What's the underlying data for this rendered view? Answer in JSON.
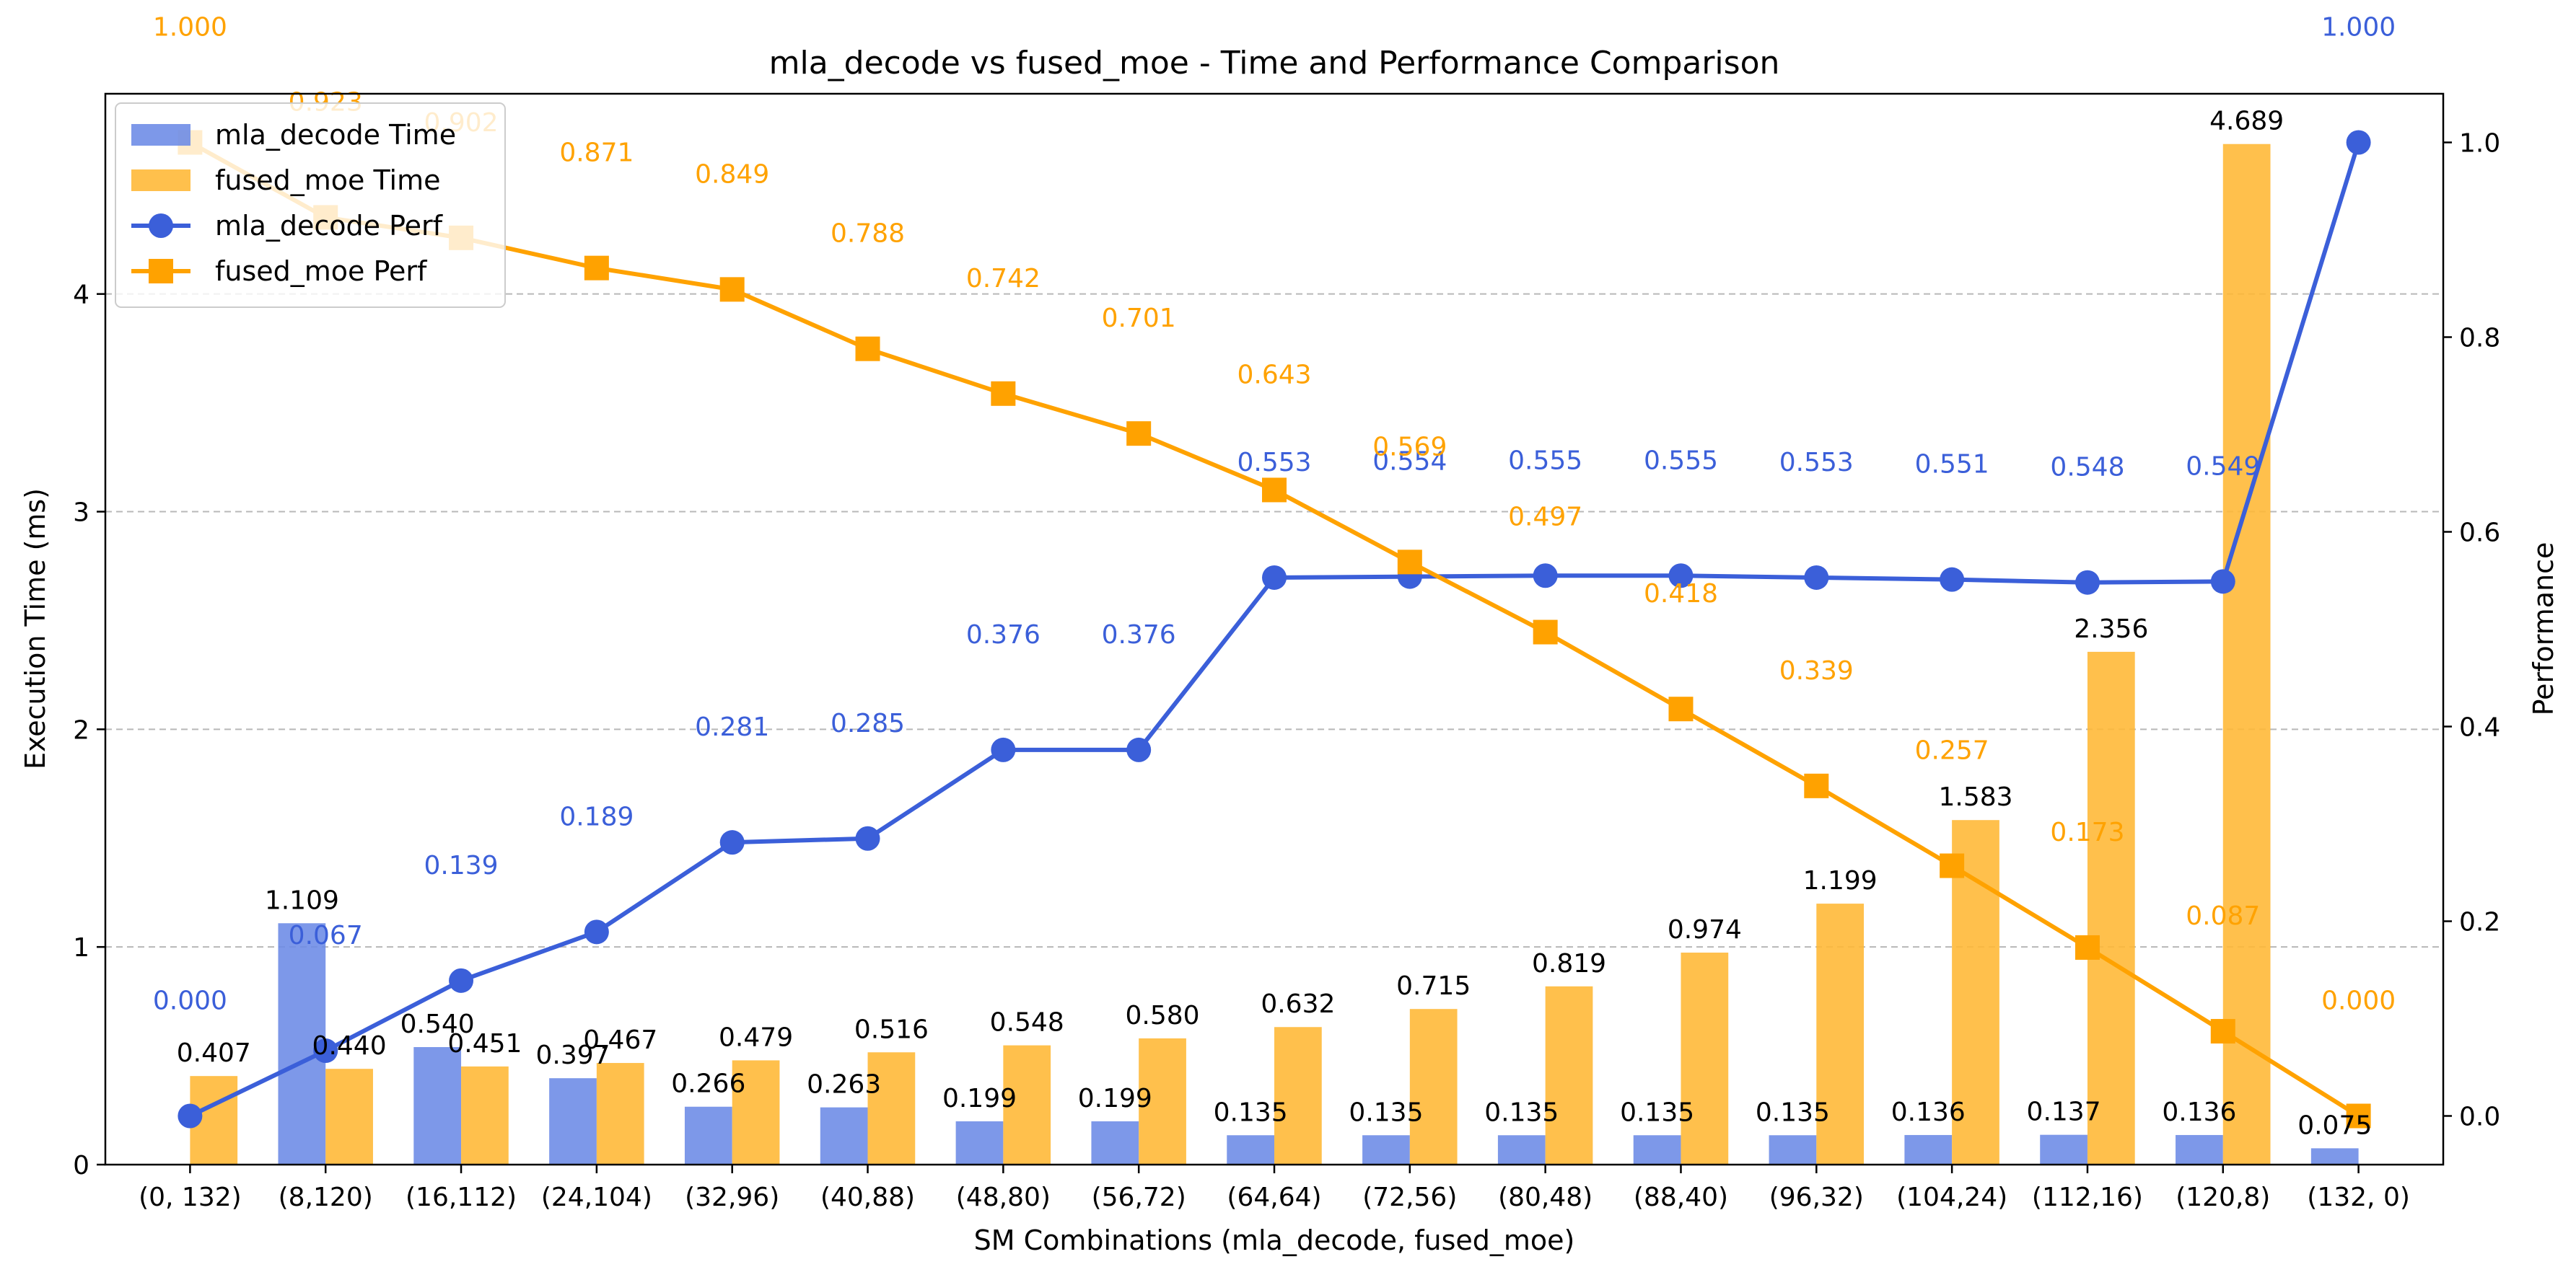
{
  "chart_data": {
    "type": "bar+line",
    "title": "mla_decode vs fused_moe - Time and Performance Comparison",
    "xlabel": "SM Combinations (mla_decode, fused_moe)",
    "ylabel_left": "Execution Time (ms)",
    "ylabel_right": "Performance",
    "categories": [
      "(0, 132)",
      "(8,120)",
      "(16,112)",
      "(24,104)",
      "(32,96)",
      "(40,88)",
      "(48,80)",
      "(56,72)",
      "(64,64)",
      "(72,56)",
      "(80,48)",
      "(88,40)",
      "(96,32)",
      "(104,24)",
      "(112,16)",
      "(120,8)",
      "(132, 0)"
    ],
    "ylim_left": [
      0,
      4.92
    ],
    "ylim_right": [
      -0.05,
      1.05
    ],
    "yticks_left": [
      "0",
      "1",
      "2",
      "3",
      "4"
    ],
    "yticks_right": [
      "0.0",
      "0.2",
      "0.4",
      "0.6",
      "0.8",
      "1.0"
    ],
    "grid": "horizontal dashed",
    "legend_position": "upper-left",
    "series": [
      {
        "name": "mla_decode Time",
        "kind": "bar",
        "axis": "left",
        "color": "#6b8ae6",
        "values": [
          0,
          1.109,
          0.54,
          0.397,
          0.266,
          0.263,
          0.199,
          0.199,
          0.135,
          0.135,
          0.135,
          0.135,
          0.135,
          0.136,
          0.137,
          0.136,
          0.075
        ],
        "labels": [
          "",
          "1.109",
          "0.540",
          "0.397",
          "0.266",
          "0.263",
          "0.199",
          "0.199",
          "0.135",
          "0.135",
          "0.135",
          "0.135",
          "0.135",
          "0.136",
          "0.137",
          "0.136",
          "0.075"
        ]
      },
      {
        "name": "fused_moe Time",
        "kind": "bar",
        "axis": "left",
        "color": "#ffb733",
        "values": [
          0.407,
          0.44,
          0.451,
          0.467,
          0.479,
          0.516,
          0.548,
          0.58,
          0.632,
          0.715,
          0.819,
          0.974,
          1.199,
          1.583,
          2.356,
          4.689,
          0
        ],
        "labels": [
          "0.407",
          "0.440",
          "0.451",
          "0.467",
          "0.479",
          "0.516",
          "0.548",
          "0.580",
          "0.632",
          "0.715",
          "0.819",
          "0.974",
          "1.199",
          "1.583",
          "2.356",
          "4.689",
          ""
        ]
      },
      {
        "name": "mla_decode Perf",
        "kind": "line",
        "axis": "right",
        "color": "#3b5fd9",
        "marker": "circle",
        "values": [
          0.0,
          0.067,
          0.139,
          0.189,
          0.281,
          0.285,
          0.376,
          0.376,
          0.553,
          0.554,
          0.555,
          0.555,
          0.553,
          0.551,
          0.548,
          0.549,
          1.0
        ],
        "labels": [
          "0.000",
          "0.067",
          "0.139",
          "0.189",
          "0.281",
          "0.285",
          "0.376",
          "0.376",
          "0.553",
          "0.554",
          "0.555",
          "0.555",
          "0.553",
          "0.551",
          "0.548",
          "0.549",
          "1.000"
        ]
      },
      {
        "name": "fused_moe Perf",
        "kind": "line",
        "axis": "right",
        "color": "#ffa200",
        "marker": "square",
        "values": [
          1.0,
          0.923,
          0.902,
          0.871,
          0.849,
          0.788,
          0.742,
          0.701,
          0.643,
          0.569,
          0.497,
          0.418,
          0.339,
          0.257,
          0.173,
          0.087,
          0.0
        ],
        "labels": [
          "1.000",
          "0.923",
          "0.902",
          "0.871",
          "0.849",
          "0.788",
          "0.742",
          "0.701",
          "0.643",
          "0.569",
          "0.497",
          "0.418",
          "0.339",
          "0.257",
          "0.173",
          "0.087",
          "0.000"
        ]
      }
    ]
  }
}
